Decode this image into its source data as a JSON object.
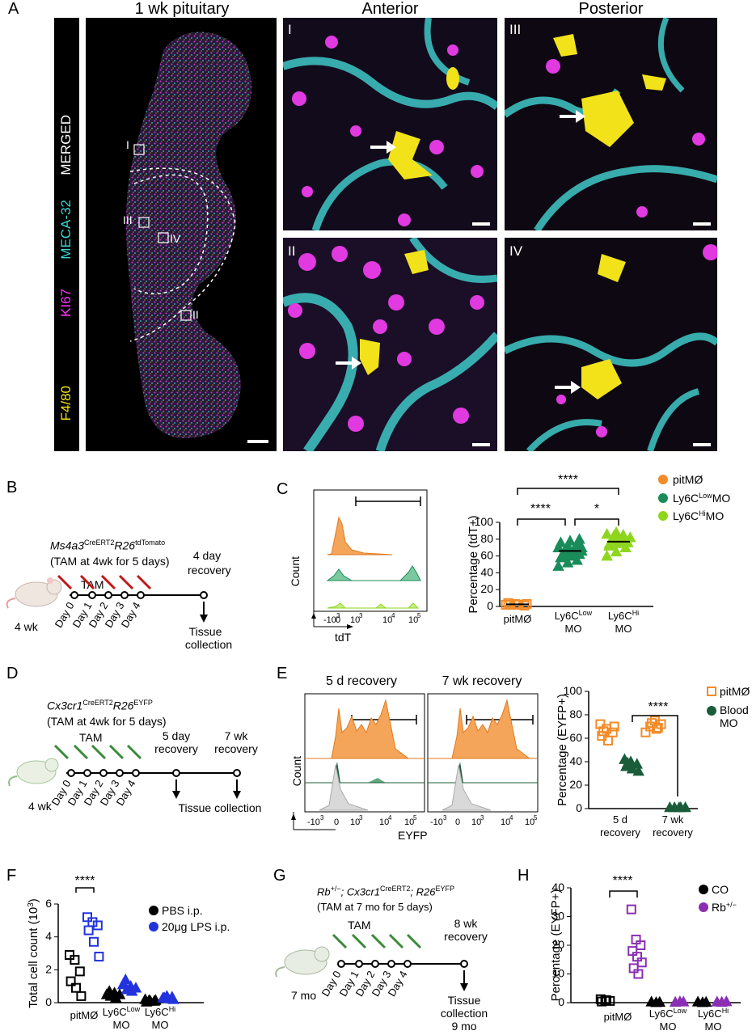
{
  "panels": {
    "A": {
      "letter": "A",
      "title_pituitary": "1 wk pituitary",
      "title_anterior": "Anterior",
      "title_posterior": "Posterior",
      "channels": [
        "MERGED",
        "MECA-32",
        "KI67",
        "F4/80"
      ],
      "channel_colors": [
        "#ffffff",
        "#3fd4d4",
        "#ff33ff",
        "#f2e21a"
      ],
      "insets": [
        "I",
        "II",
        "III",
        "IV"
      ]
    },
    "B": {
      "letter": "B",
      "genotype_a": "Ms4a3",
      "genotype_a_sup": "CreERT2",
      "genotype_b": "R26",
      "genotype_b_sup": "tdTomato",
      "regimen": "(TAM at 4wk for 5 days)",
      "tam": "TAM",
      "age": "4 wk",
      "days": [
        "Day 0",
        "Day 1",
        "Day 2",
        "Day 3",
        "Day 4"
      ],
      "recovery": [
        "4 day",
        "recovery"
      ],
      "collection": [
        "Tissue",
        "collection"
      ]
    },
    "C": {
      "letter": "C",
      "hist_ylabel": "Count",
      "hist_xlabel": "tdT",
      "hist_ticks": [
        "-10",
        "3",
        "0",
        "10",
        "3",
        "10",
        "4",
        "10",
        "5"
      ],
      "ylabel": "Percentage (tdT+)",
      "legend": [
        "pitMØ",
        "Ly6C",
        "Low",
        "MO",
        "Ly6C",
        "Hi",
        "MO"
      ],
      "legend_colors": [
        "#f28c28",
        "#1a8c5a",
        "#8ed61e"
      ],
      "sig": [
        "****",
        "****",
        "*"
      ],
      "xcats": [
        "pitMØ",
        "Ly6C",
        "Low",
        "MO",
        "Ly6C",
        "Hi",
        "MO"
      ]
    },
    "D": {
      "letter": "D",
      "genotype_a": "Cx3cr1",
      "genotype_a_sup": "CreERT2",
      "genotype_b": "R26",
      "genotype_b_sup": "EYFP",
      "regimen": "(TAM at 4wk for 5 days)",
      "tam": "TAM",
      "age": "4 wk",
      "days": [
        "Day 0",
        "Day 1",
        "Day 2",
        "Day 3",
        "Day 4"
      ],
      "recovery1": [
        "5 day",
        "recovery"
      ],
      "recovery2": [
        "7 wk",
        "recovery"
      ],
      "collection": "Tissue collection"
    },
    "E": {
      "letter": "E",
      "hist_titles": [
        "5 d recovery",
        "7 wk recovery"
      ],
      "hist_ylabel": "Count",
      "hist_xlabel": "EYFP",
      "ylabel": "Percentage (EYFP+)",
      "legend": [
        "pitMØ",
        "Blood",
        "MO"
      ],
      "legend_colors": [
        "#f28c28",
        "#1a5c3a"
      ],
      "sig": "****",
      "xcats": [
        [
          "5 d",
          "recovery"
        ],
        [
          "7 wk",
          "recovery"
        ]
      ]
    },
    "F": {
      "letter": "F",
      "ylabel": "Total cell count (10",
      "ylabel_sup": "3",
      "ylabel_end": ")",
      "legend": [
        "PBS i.p.",
        "20μg LPS i.p."
      ],
      "legend_colors": [
        "#000000",
        "#2233dd"
      ],
      "sig": "****",
      "xcats": [
        "pitMØ",
        "Ly6C",
        "Low",
        "MO",
        "Ly6C",
        "Hi",
        "MO"
      ]
    },
    "G": {
      "letter": "G",
      "genotype_a": "Rb",
      "genotype_a_sup": "+/−",
      "genotype_b": "; Cx3cr1",
      "genotype_b_sup": "CreERT2",
      "genotype_c": "; R26",
      "genotype_c_sup": "EYFP",
      "regimen": "(TAM at 7 mo for 5 days)",
      "tam": "TAM",
      "age": "7 mo",
      "days": [
        "Day 0",
        "Day 1",
        "Day 2",
        "Day 3",
        "Day 4"
      ],
      "recovery": [
        "8 wk",
        "recovery"
      ],
      "collection": [
        "Tissue",
        "collection",
        "9 mo"
      ]
    },
    "H": {
      "letter": "H",
      "ylabel": "Percentage (EYFP+)",
      "legend": [
        "CO",
        "Rb",
        "+/−"
      ],
      "legend_colors": [
        "#000000",
        "#8a2fb3"
      ],
      "sig": "****",
      "xcats": [
        "pitMØ",
        "Ly6C",
        "Low",
        "MO",
        "Ly6C",
        "Hi",
        "MO"
      ]
    }
  },
  "chart_data": [
    {
      "type": "scatter",
      "panel": "C",
      "ylabel": "Percentage (tdT+)",
      "ylim": [
        0,
        100
      ],
      "yticks": [
        0,
        20,
        40,
        60,
        80,
        100
      ],
      "categories": [
        "pitMØ",
        "Ly6C Low MO",
        "Ly6C Hi MO"
      ],
      "series": [
        {
          "name": "pitMØ",
          "values": [
            2,
            3,
            1,
            4,
            2,
            3,
            2
          ],
          "mean": 2.5
        },
        {
          "name": "Ly6C Low MO",
          "values": [
            48,
            52,
            55,
            58,
            60,
            62,
            63,
            65,
            66,
            67,
            68,
            70,
            72,
            74,
            76,
            78,
            80,
            60,
            64,
            70
          ],
          "mean": 66
        },
        {
          "name": "Ly6C Hi MO",
          "values": [
            60,
            65,
            70,
            72,
            75,
            76,
            78,
            80,
            82,
            84,
            85,
            86,
            88,
            78,
            74,
            80
          ],
          "mean": 77
        }
      ]
    },
    {
      "type": "scatter",
      "panel": "E",
      "ylabel": "Percentage (EYFP+)",
      "ylim": [
        0,
        100
      ],
      "yticks": [
        0,
        20,
        40,
        60,
        80,
        100
      ],
      "categories": [
        "5 d recovery",
        "7 wk recovery"
      ],
      "series": [
        {
          "name": "pitMØ",
          "values": [
            [
              0,
              72
            ],
            [
              0,
              68
            ],
            [
              0,
              65
            ],
            [
              0,
              62
            ],
            [
              0,
              58
            ],
            [
              0,
              70
            ],
            [
              0,
              66
            ],
            [
              1,
              75
            ],
            [
              1,
              72
            ],
            [
              1,
              70
            ],
            [
              1,
              68
            ],
            [
              1,
              65
            ],
            [
              1,
              73
            ],
            [
              1,
              69
            ]
          ]
        },
        {
          "name": "Blood MO",
          "values": [
            [
              0,
              42
            ],
            [
              0,
              40
            ],
            [
              0,
              38
            ],
            [
              0,
              36
            ],
            [
              0,
              34
            ],
            [
              0,
              32
            ],
            [
              0,
              39
            ],
            [
              1,
              1
            ],
            [
              1,
              1
            ],
            [
              1,
              1
            ],
            [
              1,
              1
            ],
            [
              1,
              1
            ]
          ]
        }
      ]
    },
    {
      "type": "scatter",
      "panel": "F",
      "ylabel": "Total cell count (10^3)",
      "ylim": [
        0,
        6
      ],
      "yticks": [
        0,
        2,
        4,
        6
      ],
      "categories": [
        "pitMØ",
        "Ly6C Low MO",
        "Ly6C Hi MO"
      ],
      "series": [
        {
          "name": "PBS i.p.",
          "values": [
            [
              0,
              2.9
            ],
            [
              0,
              2.6
            ],
            [
              0,
              1.9
            ],
            [
              0,
              1.3
            ],
            [
              0,
              0.9
            ],
            [
              0,
              0.4
            ],
            [
              1,
              0.7
            ],
            [
              1,
              0.6
            ],
            [
              1,
              0.5
            ],
            [
              1,
              0.4
            ],
            [
              1,
              0.3
            ],
            [
              1,
              0.5
            ],
            [
              2,
              0.15
            ],
            [
              2,
              0.1
            ],
            [
              2,
              0.2
            ],
            [
              2,
              0.1
            ],
            [
              2,
              0.15
            ],
            [
              2,
              0.05
            ]
          ]
        },
        {
          "name": "20μg LPS i.p.",
          "values": [
            [
              0,
              5.2
            ],
            [
              0,
              4.9
            ],
            [
              0,
              4.7
            ],
            [
              0,
              4.4
            ],
            [
              0,
              3.7
            ],
            [
              0,
              2.8
            ],
            [
              1,
              1.4
            ],
            [
              1,
              1.0
            ],
            [
              1,
              0.9
            ],
            [
              1,
              0.8
            ],
            [
              1,
              0.7
            ],
            [
              1,
              1.1
            ],
            [
              2,
              0.4
            ],
            [
              2,
              0.35
            ],
            [
              2,
              0.3
            ],
            [
              2,
              0.25
            ],
            [
              2,
              0.2
            ],
            [
              2,
              0.3
            ]
          ]
        }
      ]
    },
    {
      "type": "scatter",
      "panel": "H",
      "ylabel": "Percentage (EYFP+)",
      "ylim": [
        0,
        40
      ],
      "yticks": [
        0,
        10,
        20,
        30,
        40
      ],
      "categories": [
        "pitMØ",
        "Ly6C Low MO",
        "Ly6C Hi MO"
      ],
      "series": [
        {
          "name": "CO",
          "values": [
            [
              0,
              1.2
            ],
            [
              0,
              0.9
            ],
            [
              0,
              0.6
            ],
            [
              0,
              0.4
            ],
            [
              0,
              0.8
            ],
            [
              1,
              0.2
            ],
            [
              1,
              0.3
            ],
            [
              1,
              0.1
            ],
            [
              2,
              0.2
            ],
            [
              2,
              0.3
            ],
            [
              2,
              0.1
            ]
          ]
        },
        {
          "name": "Rb+/−",
          "values": [
            [
              0,
              32.5
            ],
            [
              0,
              22
            ],
            [
              0,
              20
            ],
            [
              0,
              18
            ],
            [
              0,
              16
            ],
            [
              0,
              14
            ],
            [
              0,
              12
            ],
            [
              0,
              10
            ],
            [
              1,
              0.3
            ],
            [
              1,
              0.2
            ],
            [
              1,
              0.4
            ],
            [
              2,
              0.3
            ],
            [
              2,
              0.2
            ],
            [
              2,
              0.4
            ]
          ]
        }
      ]
    }
  ]
}
